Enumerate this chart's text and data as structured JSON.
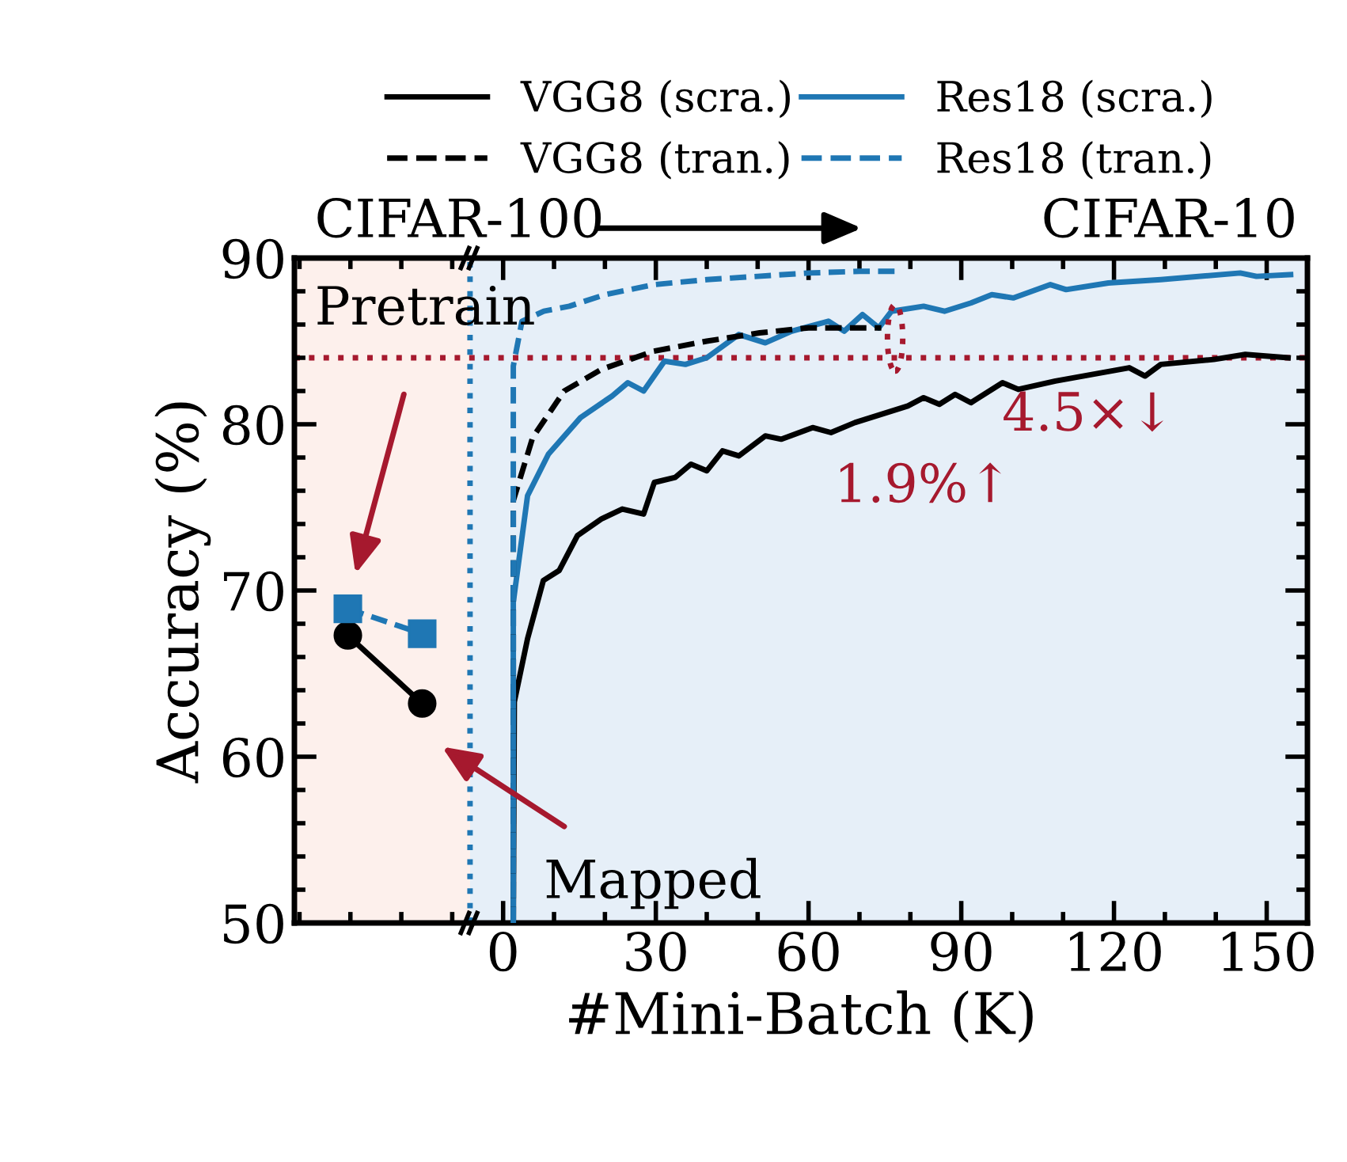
{
  "chart_data": {
    "type": "line",
    "xlabel": "#Mini-Batch (K)",
    "ylabel": "Accuracy (%)",
    "xlim": [
      -41,
      158
    ],
    "ylim": [
      50,
      90
    ],
    "xticks": [
      0,
      30,
      60,
      90,
      120,
      150
    ],
    "yticks": [
      50,
      60,
      70,
      80,
      90
    ],
    "legend": "top",
    "grid": false,
    "series": [
      {
        "name": "VGG8 (scra.)",
        "color": "#000000",
        "line_style": "solid",
        "x": [
          2,
          2.2,
          4.8,
          7.9,
          11,
          14.6,
          19.3,
          23.4,
          27.6,
          29.7,
          33.8,
          36.9,
          40,
          43.1,
          46.3,
          51.5,
          54.6,
          60.8,
          64.4,
          69.1,
          74.3,
          79.5,
          82.6,
          85.7,
          88.8,
          91.9,
          98.1,
          101.2,
          108.5,
          123,
          126.1,
          129.2,
          139.6,
          145.8,
          154.2
        ],
        "values": [
          50,
          63.3,
          67.1,
          70.6,
          71.2,
          73.3,
          74.3,
          74.9,
          74.6,
          76.5,
          76.8,
          77.6,
          77.2,
          78.4,
          78.1,
          79.3,
          79.1,
          79.8,
          79.5,
          80.1,
          80.6,
          81.1,
          81.6,
          81.2,
          81.8,
          81.3,
          82.5,
          82.1,
          82.6,
          83.4,
          82.9,
          83.6,
          83.9,
          84.2,
          84.0
        ]
      },
      {
        "name": "Res18 (scra.)",
        "color": "#1f77b4",
        "line_style": "solid",
        "x": [
          2,
          2,
          4.8,
          8.9,
          15.2,
          21.4,
          24.5,
          27.6,
          31.7,
          35.8,
          40,
          46.3,
          51.5,
          56.7,
          63.9,
          67,
          70.6,
          73.8,
          76.3,
          82.6,
          86.7,
          91.9,
          96,
          100.2,
          107.5,
          110.6,
          118.9,
          129.2,
          144.8,
          148,
          154.7
        ],
        "values": [
          50,
          69.3,
          75.7,
          78.2,
          80.4,
          81.7,
          82.5,
          82.0,
          83.8,
          83.6,
          84.0,
          85.4,
          84.9,
          85.6,
          86.2,
          85.6,
          86.6,
          85.8,
          86.8,
          87.1,
          86.8,
          87.3,
          87.8,
          87.6,
          88.4,
          88.1,
          88.5,
          88.7,
          89.1,
          88.9,
          89.0
        ]
      },
      {
        "name": "VGG8 (tran.)",
        "color": "#000000",
        "line_style": "dashed",
        "x": [
          2,
          2,
          5.8,
          12,
          19.3,
          29.6,
          40,
          50.4,
          60,
          74.3
        ],
        "values": [
          50,
          75.4,
          79.2,
          82.0,
          83.3,
          84.4,
          85.0,
          85.5,
          85.8,
          85.8
        ]
      },
      {
        "name": "Res18 (tran.)",
        "color": "#1f77b4",
        "line_style": "dashed",
        "x": [
          2,
          2,
          3.7,
          8,
          13,
          20,
          29.6,
          40,
          50,
          60,
          70,
          78
        ],
        "values": [
          50,
          83.5,
          86.2,
          86.8,
          87.1,
          87.8,
          88.4,
          88.7,
          88.9,
          89.1,
          89.2,
          89.2
        ]
      },
      {
        "color": "#000000",
        "line_style": "solid",
        "marker": "circle",
        "x": [
          -30.5,
          -15.9
        ],
        "values": [
          67.3,
          63.2
        ]
      },
      {
        "color": "#1f77b4",
        "line_style": "dashed",
        "marker": "square",
        "x": [
          -30.5,
          -15.9
        ],
        "values": [
          68.9,
          67.4
        ]
      }
    ],
    "bands": [
      {
        "axis": "x",
        "from": -41,
        "to": -6.5,
        "color": "#fdf0ec"
      },
      {
        "axis": "x",
        "from": -6.5,
        "to": 158,
        "color": "#e6eff8"
      }
    ],
    "ref_lines": [
      {
        "axis": "x",
        "value": -6.5,
        "color": "#1f77b4",
        "line_style": "dotted"
      },
      {
        "axis": "y",
        "value": 84.0,
        "color": "#a6192e",
        "line_style": "dotted"
      }
    ],
    "annotations": [
      "CIFAR-100",
      "CIFAR-10",
      "Pretrain",
      "Mapped",
      "4.5×↓",
      "1.9%↑"
    ]
  }
}
